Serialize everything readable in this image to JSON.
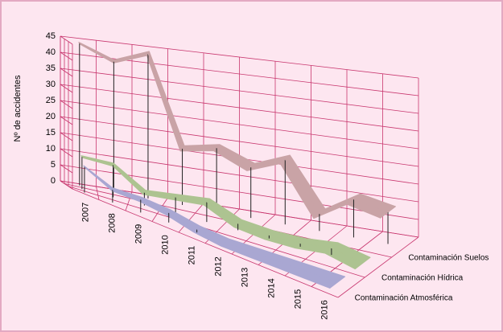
{
  "chart_data": {
    "type": "line",
    "y_label": "Nº de accidentes",
    "categories": [
      "2007",
      "2008",
      "2009",
      "2010",
      "2011",
      "2012",
      "2013",
      "2014",
      "2015",
      "2016"
    ],
    "series": [
      {
        "name": "Contaminación Suelos",
        "color": "#c9a3a6",
        "values": [
          44,
          40,
          44,
          17,
          19,
          15,
          19,
          5,
          11,
          9
        ]
      },
      {
        "name": "Contaminación Hídrica",
        "color": "#adc391",
        "values": [
          10,
          10,
          4,
          5,
          6,
          2,
          1,
          1,
          2,
          0
        ]
      },
      {
        "name": "Contaminación Atmosférica",
        "color": "#a9a7d2",
        "values": [
          8,
          4,
          4,
          3,
          1,
          0,
          0,
          0,
          0,
          0
        ]
      }
    ],
    "ylim": [
      0,
      45
    ],
    "yticks": [
      0,
      5,
      10,
      15,
      20,
      25,
      30,
      35,
      40,
      45
    ],
    "grid": true
  }
}
